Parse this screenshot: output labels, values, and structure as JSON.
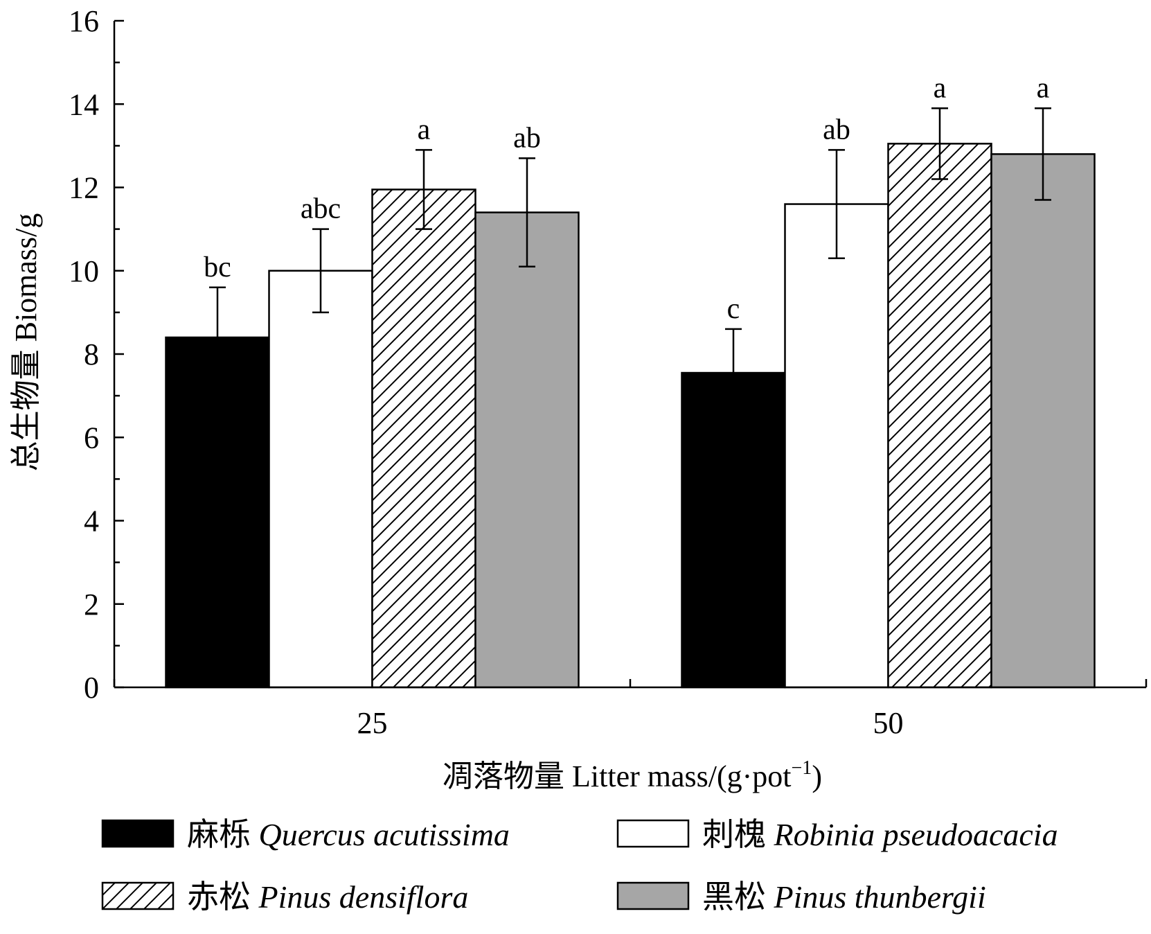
{
  "chart_data": {
    "type": "bar",
    "categories": [
      "25",
      "50"
    ],
    "series": [
      {
        "name_cn": "麻栎",
        "name_latin": "Quercus acutissima",
        "fill": "#000000",
        "pattern": "solid",
        "values": [
          8.4,
          7.55
        ],
        "errors": [
          1.2,
          1.05
        ],
        "labels": [
          "bc",
          "c"
        ]
      },
      {
        "name_cn": "刺槐",
        "name_latin": "Robinia pseudoacacia",
        "fill": "#ffffff",
        "pattern": "solid",
        "values": [
          10.0,
          11.6
        ],
        "errors": [
          1.0,
          1.3
        ],
        "labels": [
          "abc",
          "ab"
        ]
      },
      {
        "name_cn": "赤松",
        "name_latin": "Pinus densiflora",
        "fill": "#ffffff",
        "pattern": "hatch",
        "values": [
          11.95,
          13.05
        ],
        "errors": [
          0.95,
          0.85
        ],
        "labels": [
          "a",
          "a"
        ]
      },
      {
        "name_cn": "黑松",
        "name_latin": "Pinus thunbergii",
        "fill": "#a6a6a6",
        "pattern": "solid",
        "values": [
          11.4,
          12.8
        ],
        "errors": [
          1.3,
          1.1
        ],
        "labels": [
          "ab",
          "a"
        ]
      }
    ],
    "ylim": [
      0,
      16
    ],
    "yticks": [
      "0",
      "2",
      "4",
      "6",
      "8",
      "10",
      "12",
      "14",
      "16"
    ],
    "ylabel": "总生物量 Biomass/g",
    "xlabel_main": "凋落物量 Litter mass/(g·pot",
    "xlabel_sup": "−1",
    "xlabel_close": ")",
    "legend_position": "bottom"
  }
}
